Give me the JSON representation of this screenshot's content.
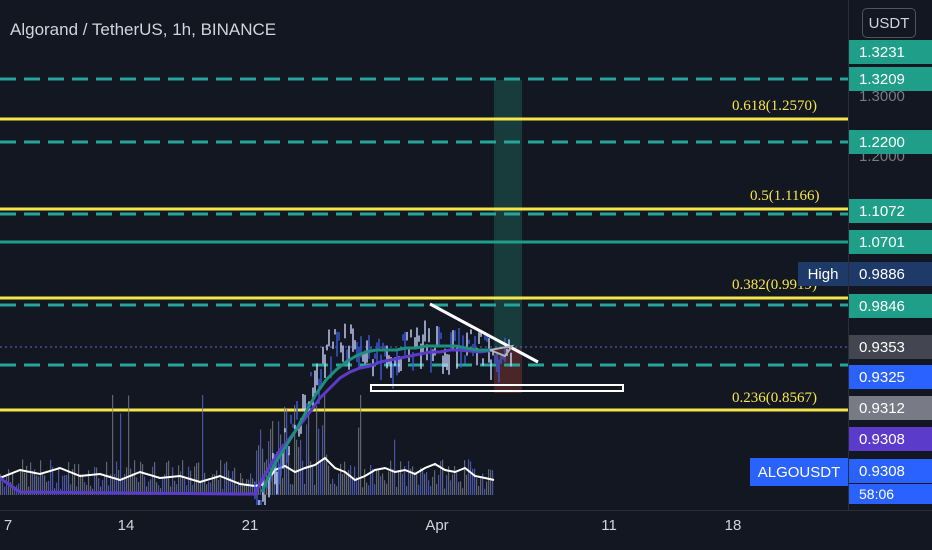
{
  "header": {
    "title": "Algorand / TetherUS, 1h, BINANCE",
    "currency": "USDT"
  },
  "colors": {
    "background": "#131722",
    "fib_line": "#f5e64a",
    "teal_dash": "#26a69a",
    "level_line": "#1f9e89",
    "candle_blue": "#2962ff",
    "ema_purple": "#5b3bc9",
    "ema_teal": "#1c8f7d"
  },
  "fib_levels": [
    {
      "label": "0.618(1.2570)",
      "price": 1.257
    },
    {
      "label": "0.5(1.1166)",
      "price": 1.1166
    },
    {
      "label": "0.382(0.9919)",
      "price": 0.9919
    },
    {
      "label": "0.236(0.8567)",
      "price": 0.8567
    }
  ],
  "dashed_levels": [
    1.3209,
    1.22,
    1.1072,
    0.9846,
    0.9325
  ],
  "solid_level": 1.0701,
  "tags": {
    "high": "High",
    "symbol": "ALGOUSDT"
  },
  "price_scale": {
    "grid_ticks": [
      "1.3000",
      "1.2000"
    ],
    "labels": [
      {
        "text": "1.3231",
        "color": "#1f9e89"
      },
      {
        "text": "1.3209",
        "color": "#1f9e89"
      },
      {
        "text": "1.2200",
        "color": "#1f9e89"
      },
      {
        "text": "1.1072",
        "color": "#1f9e89"
      },
      {
        "text": "1.0701",
        "color": "#1f9e89"
      },
      {
        "text": "0.9886",
        "color": "#1e3a68"
      },
      {
        "text": "0.9846",
        "color": "#1f9e89"
      },
      {
        "text": "0.9353",
        "color": "#434651"
      },
      {
        "text": "0.9325",
        "color": "#2962ff"
      },
      {
        "text": "0.9312",
        "color": "#787b86"
      },
      {
        "text": "0.9308",
        "color": "#5b3bc9"
      },
      {
        "text": "0.9308",
        "color": "#2962ff"
      },
      {
        "text": "58:06",
        "color": "#2962ff"
      }
    ]
  },
  "time_scale": {
    "ticks": [
      "7",
      "14",
      "21",
      "Apr",
      "11",
      "18"
    ]
  }
}
